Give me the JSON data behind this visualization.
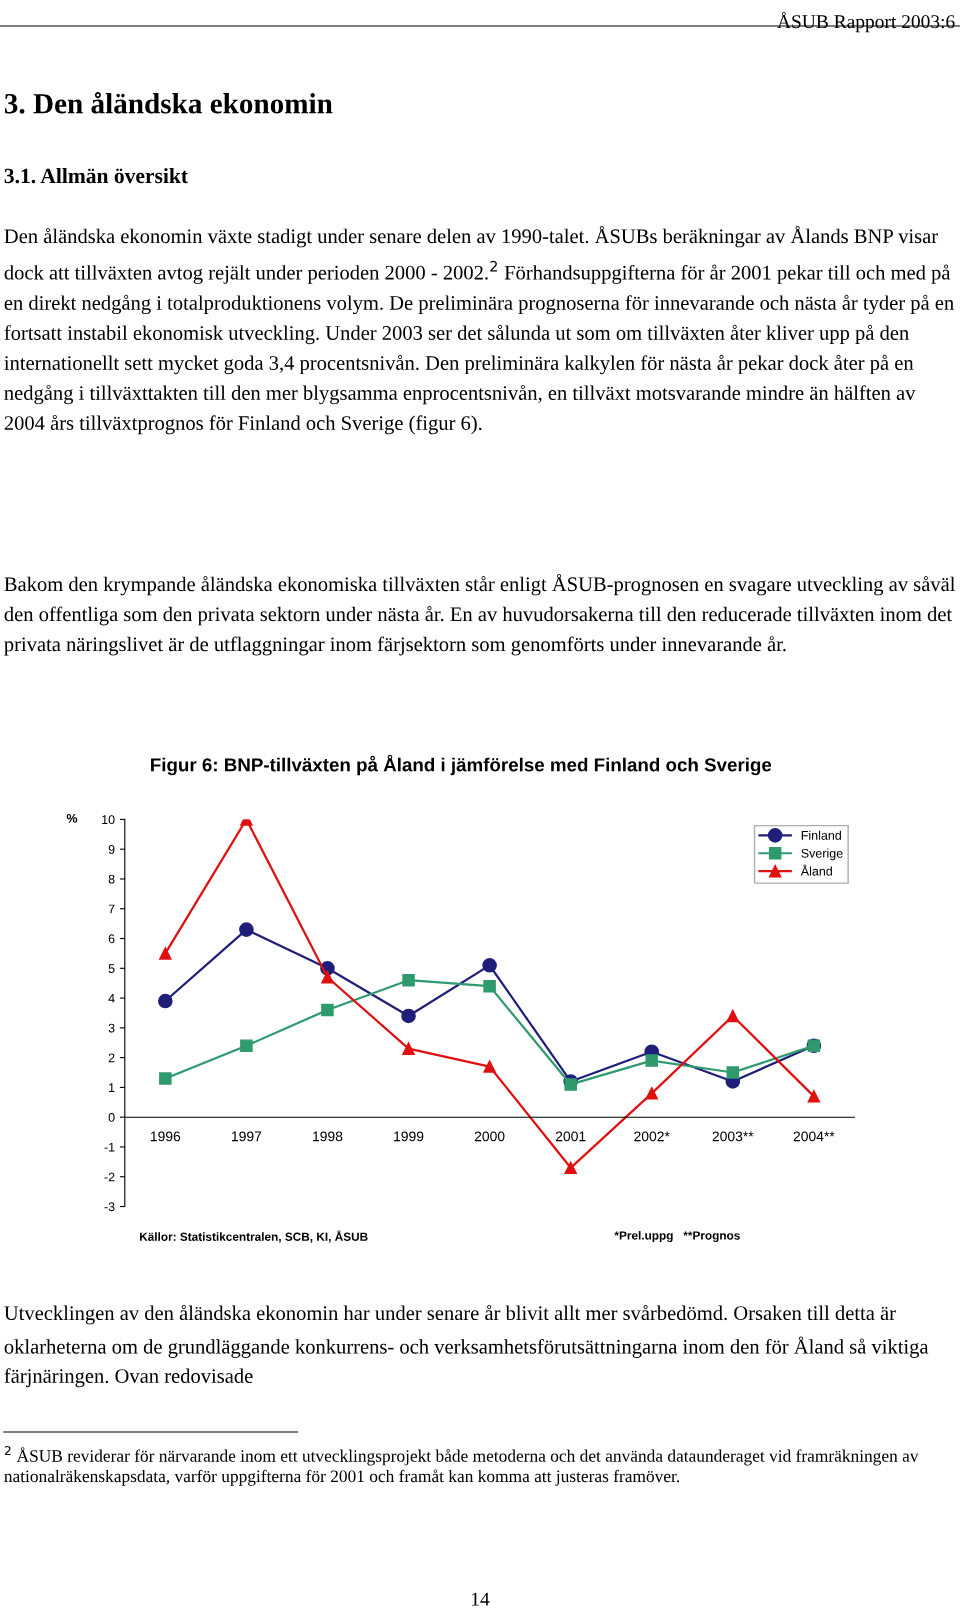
{
  "chart_data": {
    "type": "line",
    "title": "Figur 6: BNP-tillväxten på Åland i jämförelse med Finland och Sverige",
    "ylabel": "%",
    "categories": [
      "1996",
      "1997",
      "1998",
      "1999",
      "2000",
      "2001",
      "2002*",
      "2003**",
      "2004**"
    ],
    "series": [
      {
        "name": "Finland",
        "color": "#1f1f7a",
        "marker": "circle",
        "values": [
          3.9,
          6.3,
          5.0,
          3.4,
          5.1,
          1.2,
          2.2,
          1.2,
          2.4
        ]
      },
      {
        "name": "Sverige",
        "color": "#2e9a6e",
        "marker": "square",
        "values": [
          1.3,
          2.4,
          3.6,
          4.6,
          4.4,
          1.1,
          1.9,
          1.5,
          2.4
        ]
      },
      {
        "name": "Åland",
        "color": "#e01010",
        "marker": "triangle",
        "values": [
          5.5,
          10.0,
          4.7,
          2.3,
          1.7,
          -1.7,
          0.8,
          3.4,
          0.7
        ]
      }
    ],
    "ylim": [
      -3,
      10
    ],
    "yticks": [
      -3,
      -2,
      -1,
      0,
      1,
      2,
      3,
      4,
      5,
      6,
      7,
      8,
      9,
      10
    ],
    "grid": false,
    "legend": "top right",
    "annotations": [
      "ÅSUB Rapport 2003:6",
      "3. Den åländska ekonomin",
      "3.1. Allmän översikt",
      "Den åländska ekonomin växte stadigt under senare delen av 1990-talet. ÅSUBs beräkningar av Ålands BNP visar dock att tillväxten avtog rejält under perioden 2000 - 2002.$^{2}$ Förhandsuppgifterna för år 2001 pekar till och med på en direkt nedgång i totalproduktionens volym. De preliminära prognoserna för innevarande och nästa år tyder på en fortsatt instabil ekonomisk utveckling. Under 2003 ser det sålunda ut som om tillväxten åter kliver upp på den internationellt sett mycket goda 3,4 procentsnivån. Den preliminära kalkylen för nästa år pekar dock åter på en nedgång i tillväxttakten till den mer blygsamma enprocentsnivån, en tillväxt motsvarande mindre än hälften av 2004 års tillväxtprognos för Finland och Sverige (figur 6).",
      "Bakom den krympande åländska ekonomiska tillväxten står enligt ÅSUB-prognosen en svagare utveckling av såväl den offentliga som den privata sektorn under nästa år. En av huvudorsakerna till den reducerade tillväxten inom det privata näringslivet är de utflaggningar inom färjsektorn som genomförts under innevarande år.",
      "Källor: Statistikcentralen, SCB, KI, ÅSUB",
      "*Prel.uppg   **Prognos",
      "Utvecklingen av den åländska ekonomin har under senare år blivit allt mer svårbedömd. Orsaken till detta är oklarheterna om de grundläggande konkurrens- och verksamhetsförutsättningarna inom den för Åland så viktiga färjnäringen. Ovan redovisade",
      "$^{2}$ ÅSUB reviderar för närvarande inom ett utvecklingsprojekt både metoderna och det använda dataunderaget vid framräkningen av nationalräkenskapsdata, varför uppgifterna för 2001 och framåt kan komma att justeras framöver.",
      "14"
    ]
  }
}
